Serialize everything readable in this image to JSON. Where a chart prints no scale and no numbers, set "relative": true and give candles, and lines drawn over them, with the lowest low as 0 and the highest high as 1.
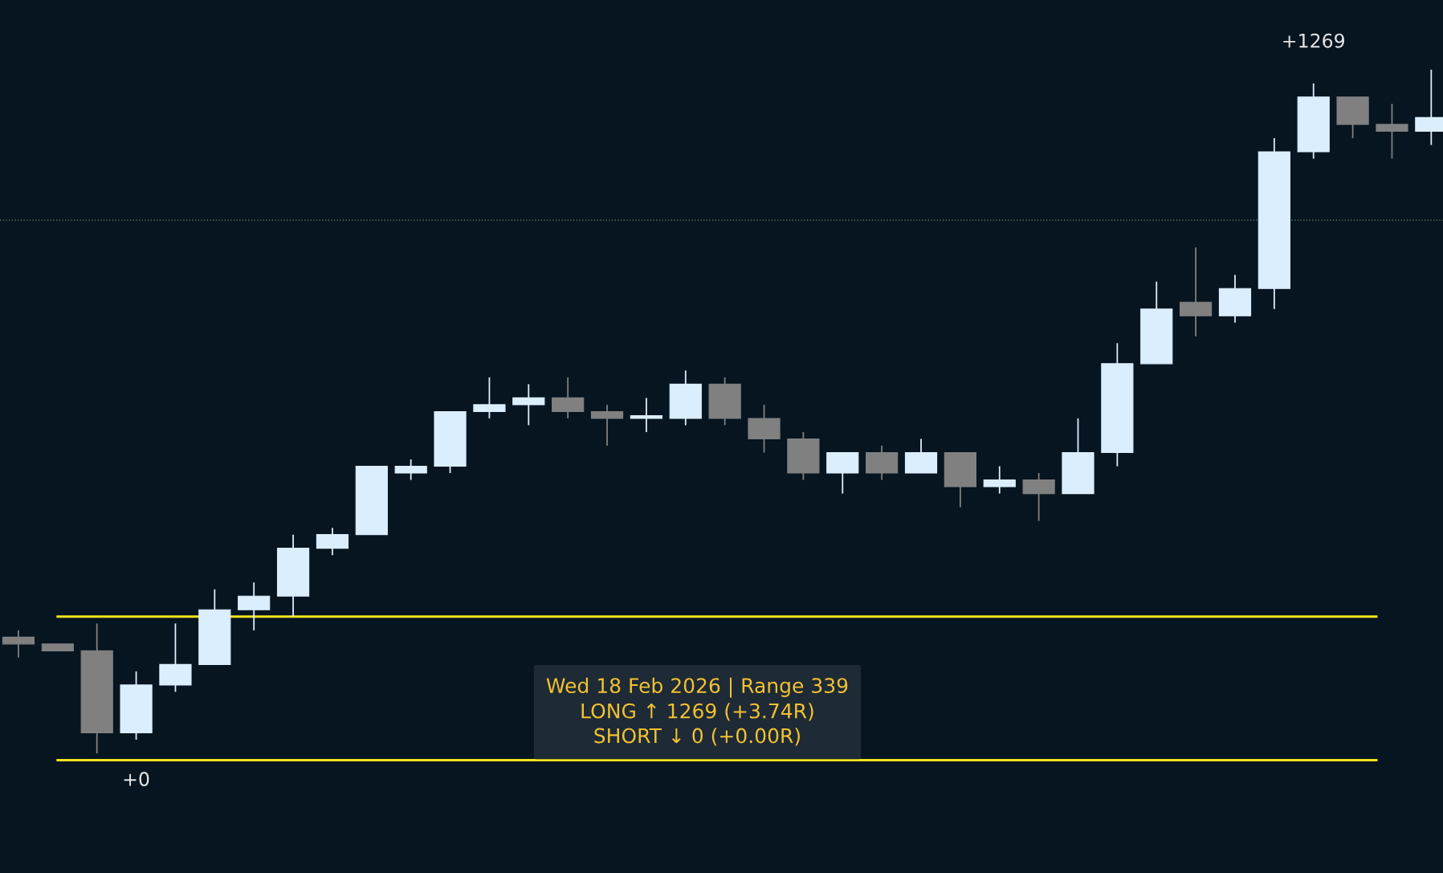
{
  "chart_data": {
    "type": "candlestick",
    "relative": true,
    "categories": [
      null,
      null,
      null,
      null,
      null,
      null,
      null,
      null,
      null,
      null,
      null,
      null,
      null,
      null,
      null,
      null,
      null,
      null,
      null,
      null,
      null,
      null,
      null,
      null,
      null,
      null,
      null,
      null,
      null,
      null,
      null,
      null,
      null,
      null,
      null,
      null,
      null
    ],
    "ohlc": [
      [
        0.17,
        0.18,
        0.14,
        0.16
      ],
      [
        0.16,
        0.16,
        0.15,
        0.15
      ],
      [
        0.15,
        0.19,
        0,
        0.03
      ],
      [
        0.03,
        0.12,
        0.02,
        0.1
      ],
      [
        0.1,
        0.19,
        0.09,
        0.13
      ],
      [
        0.13,
        0.24,
        0.13,
        0.21
      ],
      [
        0.21,
        0.25,
        0.18,
        0.23
      ],
      [
        0.23,
        0.32,
        0.2,
        0.3
      ],
      [
        0.3,
        0.33,
        0.29,
        0.32
      ],
      [
        0.32,
        0.42,
        0.32,
        0.42
      ],
      [
        0.41,
        0.43,
        0.4,
        0.42
      ],
      [
        0.42,
        0.5,
        0.41,
        0.5
      ],
      [
        0.5,
        0.55,
        0.49,
        0.51
      ],
      [
        0.51,
        0.54,
        0.48,
        0.52
      ],
      [
        0.52,
        0.55,
        0.49,
        0.5
      ],
      [
        0.5,
        0.51,
        0.45,
        0.49
      ],
      [
        0.49,
        0.52,
        0.47,
        0.49
      ],
      [
        0.49,
        0.56,
        0.48,
        0.54
      ],
      [
        0.54,
        0.55,
        0.48,
        0.49
      ],
      [
        0.49,
        0.51,
        0.44,
        0.46
      ],
      [
        0.46,
        0.47,
        0.4,
        0.41
      ],
      [
        0.41,
        0.44,
        0.38,
        0.44
      ],
      [
        0.44,
        0.45,
        0.4,
        0.41
      ],
      [
        0.41,
        0.46,
        0.41,
        0.44
      ],
      [
        0.44,
        0.44,
        0.36,
        0.39
      ],
      [
        0.39,
        0.42,
        0.38,
        0.4
      ],
      [
        0.4,
        0.41,
        0.34,
        0.38
      ],
      [
        0.38,
        0.49,
        0.38,
        0.44
      ],
      [
        0.44,
        0.6,
        0.42,
        0.57
      ],
      [
        0.57,
        0.69,
        0.57,
        0.65
      ],
      [
        0.66,
        0.74,
        0.61,
        0.64
      ],
      [
        0.64,
        0.7,
        0.63,
        0.68
      ],
      [
        0.68,
        0.9,
        0.65,
        0.88
      ],
      [
        0.88,
        0.98,
        0.87,
        0.96
      ],
      [
        0.96,
        0.96,
        0.9,
        0.92
      ],
      [
        0.92,
        0.95,
        0.87,
        0.91
      ],
      [
        0.91,
        1,
        0.89,
        0.93
      ]
    ],
    "colors": [
      "#808080",
      "#808080",
      "#808080",
      "#dbeefe",
      "#dbeefe",
      "#dbeefe",
      "#dbeefe",
      "#dbeefe",
      "#dbeefe",
      "#dbeefe",
      "#dbeefe",
      "#dbeefe",
      "#dbeefe",
      "#dbeefe",
      "#808080",
      "#808080",
      "#dbeefe",
      "#dbeefe",
      "#808080",
      "#808080",
      "#808080",
      "#dbeefe",
      "#808080",
      "#dbeefe",
      "#808080",
      "#dbeefe",
      "#808080",
      "#dbeefe",
      "#dbeefe",
      "#dbeefe",
      "#808080",
      "#dbeefe",
      "#dbeefe",
      "#dbeefe",
      "#808080",
      "#808080",
      "#dbeefe"
    ],
    "ref_lines": [
      {
        "axis": "y",
        "value": 0.78,
        "color": "#6b7a66",
        "line_style": "dotted"
      },
      {
        "axis": "y",
        "value": 0.2,
        "color": "#f5e31a",
        "line_style": "solid"
      },
      {
        "axis": "y",
        "value": -0.01,
        "color": "#f5e31a",
        "line_style": "solid"
      }
    ],
    "annotations": [
      "+1269",
      "+0",
      "Wed 18 Feb 2026 | Range 339\nLONG ↑ 1269 (+3.74R)\nSHORT ↓ 0 (+0.00R)"
    ],
    "legend": false
  }
}
